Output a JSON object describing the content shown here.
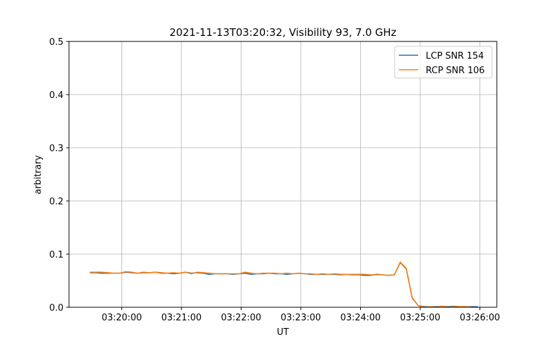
{
  "chart_data": {
    "type": "line",
    "title": "2021-11-13T03:20:32, Visibility 93, 7.0 GHz",
    "xlabel": "UT",
    "ylabel": "arbitrary",
    "xlim": [
      "03:19:07",
      "03:26:17"
    ],
    "ylim": [
      0,
      0.5
    ],
    "grid": true,
    "legend": "top-right",
    "xticks": [
      "03:20:00",
      "03:21:00",
      "03:22:00",
      "03:23:00",
      "03:24:00",
      "03:25:00",
      "03:26:00"
    ],
    "yticks": [
      "0.0",
      "0.1",
      "0.2",
      "0.3",
      "0.4",
      "0.5"
    ],
    "x": [
      "03:19:28",
      "03:19:34",
      "03:19:40",
      "03:19:46",
      "03:19:52",
      "03:19:58",
      "03:20:04",
      "03:20:10",
      "03:20:16",
      "03:20:22",
      "03:20:28",
      "03:20:34",
      "03:20:40",
      "03:20:46",
      "03:20:52",
      "03:20:58",
      "03:21:04",
      "03:21:10",
      "03:21:16",
      "03:21:22",
      "03:21:28",
      "03:21:34",
      "03:21:40",
      "03:21:46",
      "03:21:52",
      "03:21:58",
      "03:22:04",
      "03:22:10",
      "03:22:16",
      "03:22:22",
      "03:22:28",
      "03:22:34",
      "03:22:40",
      "03:22:46",
      "03:22:52",
      "03:22:58",
      "03:23:04",
      "03:23:10",
      "03:23:16",
      "03:23:22",
      "03:23:28",
      "03:23:34",
      "03:23:40",
      "03:23:46",
      "03:23:52",
      "03:23:58",
      "03:24:04",
      "03:24:10",
      "03:24:16",
      "03:24:22",
      "03:24:28",
      "03:24:34",
      "03:24:40",
      "03:24:46",
      "03:24:52",
      "03:24:58",
      "03:25:04",
      "03:25:10",
      "03:25:16",
      "03:25:22",
      "03:25:28",
      "03:25:34",
      "03:25:40",
      "03:25:46",
      "03:25:52",
      "03:25:58"
    ],
    "series": [
      {
        "name": "LCP SNR 154",
        "color": "#1f77b4",
        "values": [
          0.065,
          0.065,
          0.064,
          0.064,
          0.064,
          0.064,
          0.066,
          0.065,
          0.064,
          0.065,
          0.065,
          0.066,
          0.064,
          0.064,
          0.063,
          0.064,
          0.066,
          0.064,
          0.065,
          0.064,
          0.062,
          0.063,
          0.063,
          0.063,
          0.062,
          0.063,
          0.064,
          0.062,
          0.063,
          0.063,
          0.064,
          0.063,
          0.063,
          0.062,
          0.063,
          0.064,
          0.063,
          0.062,
          0.062,
          0.062,
          0.062,
          0.062,
          0.061,
          0.062,
          0.061,
          0.061,
          0.06,
          0.06,
          0.062,
          0.061,
          0.06,
          0.061,
          0.084,
          0.072,
          0.018,
          0.003,
          0.001,
          0.001,
          0.001,
          0.002,
          0.001,
          0.002,
          0.001,
          0.001,
          0.001,
          0.001
        ]
      },
      {
        "name": "RCP SNR 106",
        "color": "#ff7f0e",
        "values": [
          0.066,
          0.066,
          0.066,
          0.065,
          0.064,
          0.064,
          0.067,
          0.066,
          0.064,
          0.066,
          0.065,
          0.066,
          0.065,
          0.064,
          0.065,
          0.064,
          0.066,
          0.063,
          0.066,
          0.065,
          0.064,
          0.063,
          0.063,
          0.063,
          0.063,
          0.063,
          0.066,
          0.064,
          0.063,
          0.064,
          0.064,
          0.064,
          0.063,
          0.064,
          0.063,
          0.064,
          0.063,
          0.063,
          0.062,
          0.063,
          0.062,
          0.063,
          0.062,
          0.062,
          0.062,
          0.062,
          0.062,
          0.061,
          0.061,
          0.061,
          0.06,
          0.061,
          0.085,
          0.073,
          0.017,
          0.003,
          0.0,
          0.001,
          0.0,
          0.002,
          0.0,
          0.001,
          0.001,
          0.001,
          0.0,
          0.0
        ]
      }
    ]
  }
}
